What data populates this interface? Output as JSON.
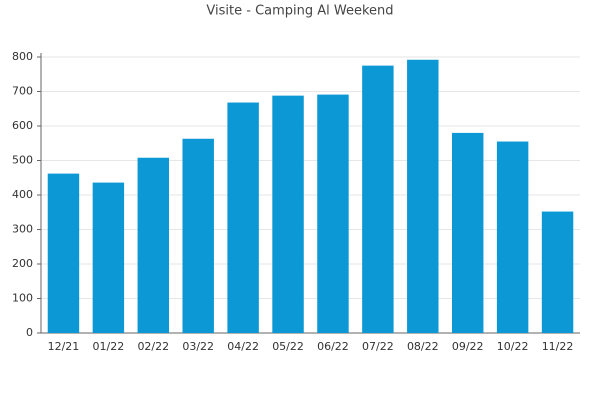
{
  "chart_data": {
    "type": "bar",
    "title": "Visite - Camping Al Weekend",
    "categories": [
      "12/21",
      "01/22",
      "02/22",
      "03/22",
      "04/22",
      "05/22",
      "06/22",
      "07/22",
      "08/22",
      "09/22",
      "10/22",
      "11/22"
    ],
    "values": [
      462,
      436,
      508,
      563,
      668,
      688,
      691,
      775,
      792,
      580,
      555,
      352
    ],
    "color": "#0b98d4",
    "ylim": [
      0,
      800
    ],
    "yticks": [
      0,
      100,
      200,
      300,
      400,
      500,
      600,
      700,
      800
    ],
    "grid": true
  }
}
